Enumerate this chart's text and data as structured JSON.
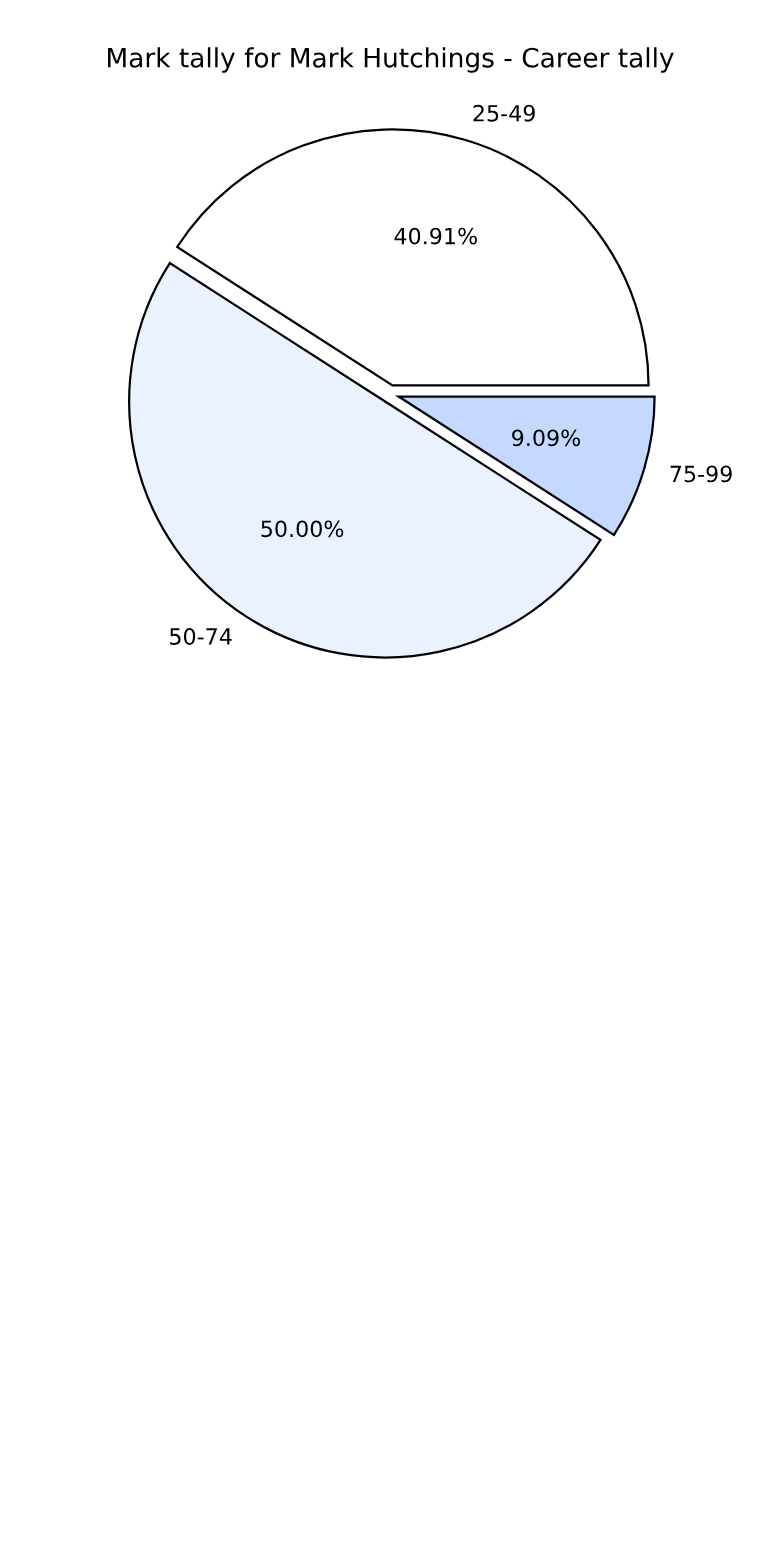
{
  "chart_data": {
    "type": "pie",
    "title": "Mark tally for Mark Hutchings - Career tally",
    "categories": [
      "25-49",
      "50-74",
      "75-99"
    ],
    "values": [
      40.91,
      50.0,
      9.09
    ],
    "value_labels": [
      "40.91%",
      "50.00%",
      "9.09%"
    ],
    "colors": [
      "#ffffff",
      "#eaf1ff",
      "#c5d8ff"
    ]
  }
}
